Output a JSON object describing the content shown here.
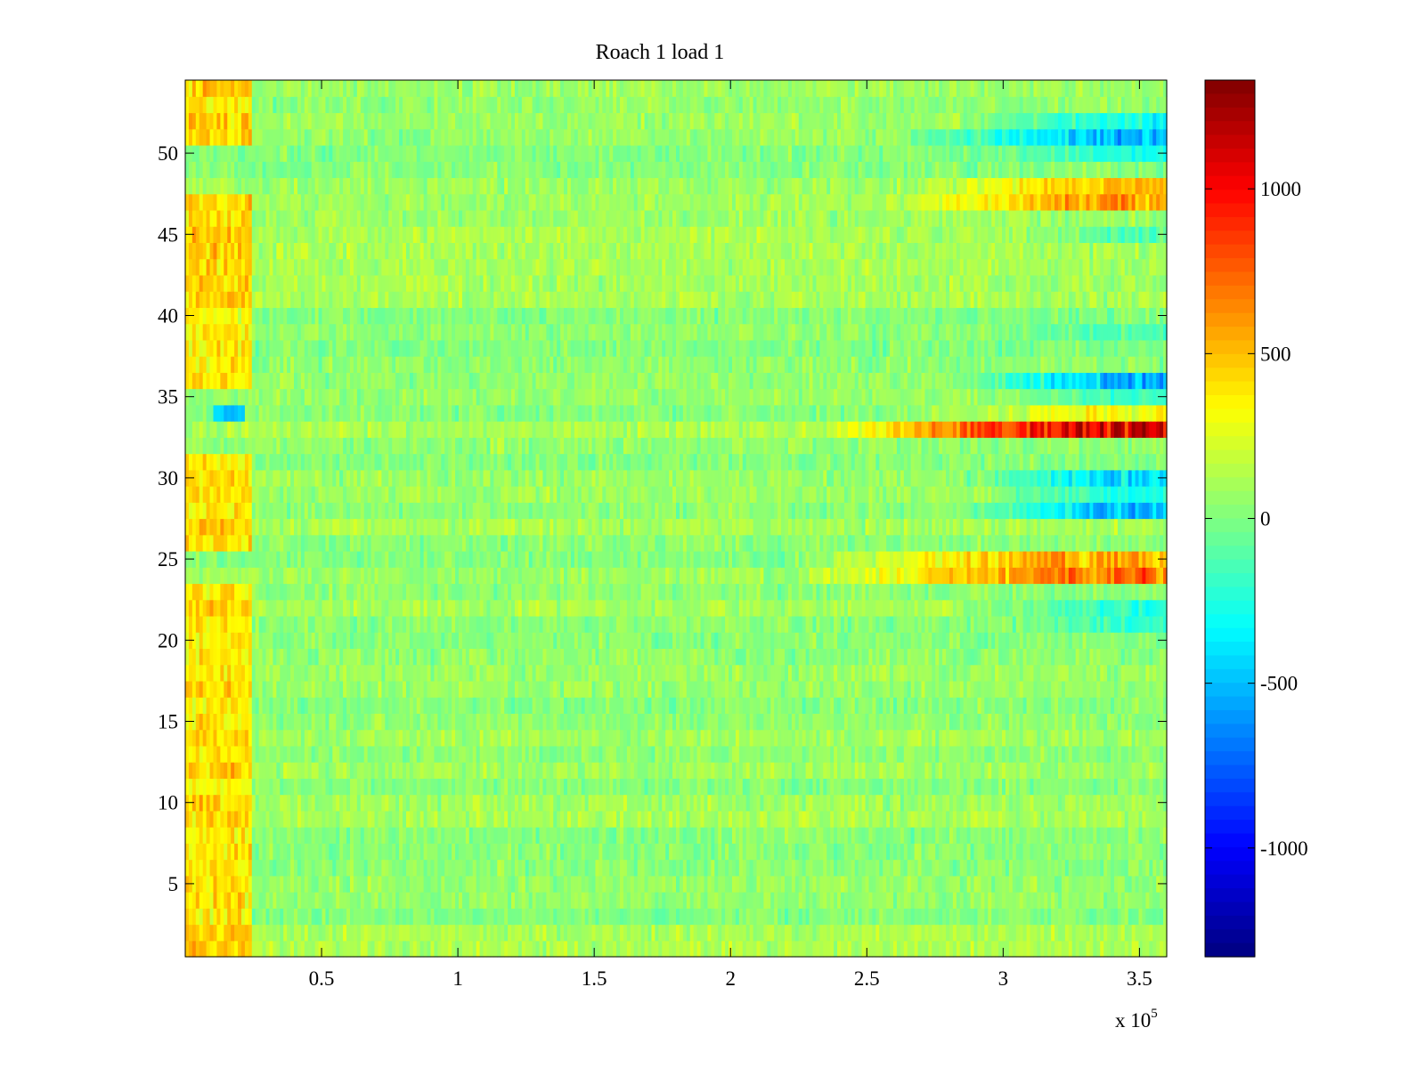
{
  "chart_data": {
    "type": "heatmap",
    "title": "Roach 1 load 1",
    "xlabel": "",
    "ylabel": "",
    "colormap": "jet",
    "xlim": [
      0,
      360000
    ],
    "ylim": [
      0.5,
      54.5
    ],
    "x_exponent_label": "x 10",
    "x_exponent": "5",
    "x_ticks": [
      {
        "value": 50000,
        "label": "0.5"
      },
      {
        "value": 100000,
        "label": "1"
      },
      {
        "value": 150000,
        "label": "1.5"
      },
      {
        "value": 200000,
        "label": "2"
      },
      {
        "value": 250000,
        "label": "2.5"
      },
      {
        "value": 300000,
        "label": "3"
      },
      {
        "value": 350000,
        "label": "3.5"
      }
    ],
    "y_ticks": [
      {
        "value": 5,
        "label": "5"
      },
      {
        "value": 10,
        "label": "10"
      },
      {
        "value": 15,
        "label": "15"
      },
      {
        "value": 20,
        "label": "20"
      },
      {
        "value": 25,
        "label": "25"
      },
      {
        "value": 30,
        "label": "30"
      },
      {
        "value": 35,
        "label": "35"
      },
      {
        "value": 40,
        "label": "40"
      },
      {
        "value": 45,
        "label": "45"
      },
      {
        "value": 50,
        "label": "50"
      }
    ],
    "rows": 54,
    "color_range": [
      -1330,
      1330
    ],
    "colorbar_ticks": [
      {
        "value": 1000,
        "label": "1000"
      },
      {
        "value": 500,
        "label": "500"
      },
      {
        "value": 0,
        "label": "0"
      },
      {
        "value": -500,
        "label": "-500"
      },
      {
        "value": -1000,
        "label": "-1000"
      }
    ],
    "patterns": {
      "baseline_value": 60,
      "noise_amplitude": 170,
      "early_warm_rows": [
        1,
        2,
        3,
        4,
        5,
        6,
        7,
        8,
        9,
        10,
        11,
        12,
        13,
        14,
        15,
        16,
        17,
        18,
        19,
        20,
        21,
        22,
        23,
        26,
        27,
        28,
        29,
        30,
        31,
        36,
        37,
        38,
        39,
        40,
        41,
        42,
        43,
        44,
        45,
        46,
        47,
        51,
        52,
        53,
        54
      ],
      "early_warm_x_max": 25000,
      "early_warm_value": 380,
      "early_cold_rows": [
        34
      ],
      "early_cold_x_range": [
        10000,
        22000
      ],
      "early_cold_value": -450,
      "late_bands": [
        {
          "row": 24,
          "x_start": 220000,
          "value": 650
        },
        {
          "row": 25,
          "x_start": 220000,
          "value": 600
        },
        {
          "row": 33,
          "x_start": 230000,
          "value": 980
        },
        {
          "row": 34,
          "x_start": 260000,
          "value": 300
        },
        {
          "row": 47,
          "x_start": 250000,
          "value": 520
        },
        {
          "row": 48,
          "x_start": 260000,
          "value": 420
        },
        {
          "row": 28,
          "x_start": 280000,
          "value": -550
        },
        {
          "row": 30,
          "x_start": 280000,
          "value": -520
        },
        {
          "row": 29,
          "x_start": 290000,
          "value": -330
        },
        {
          "row": 36,
          "x_start": 280000,
          "value": -620
        },
        {
          "row": 35,
          "x_start": 300000,
          "value": -250
        },
        {
          "row": 51,
          "x_start": 260000,
          "value": -560
        },
        {
          "row": 52,
          "x_start": 280000,
          "value": -360
        },
        {
          "row": 50,
          "x_start": 290000,
          "value": -280
        },
        {
          "row": 22,
          "x_start": 280000,
          "value": -320
        },
        {
          "row": 21,
          "x_start": 300000,
          "value": -240
        },
        {
          "row": 45,
          "x_start": 300000,
          "value": -230
        },
        {
          "row": 39,
          "x_start": 290000,
          "value": -180
        }
      ]
    }
  }
}
